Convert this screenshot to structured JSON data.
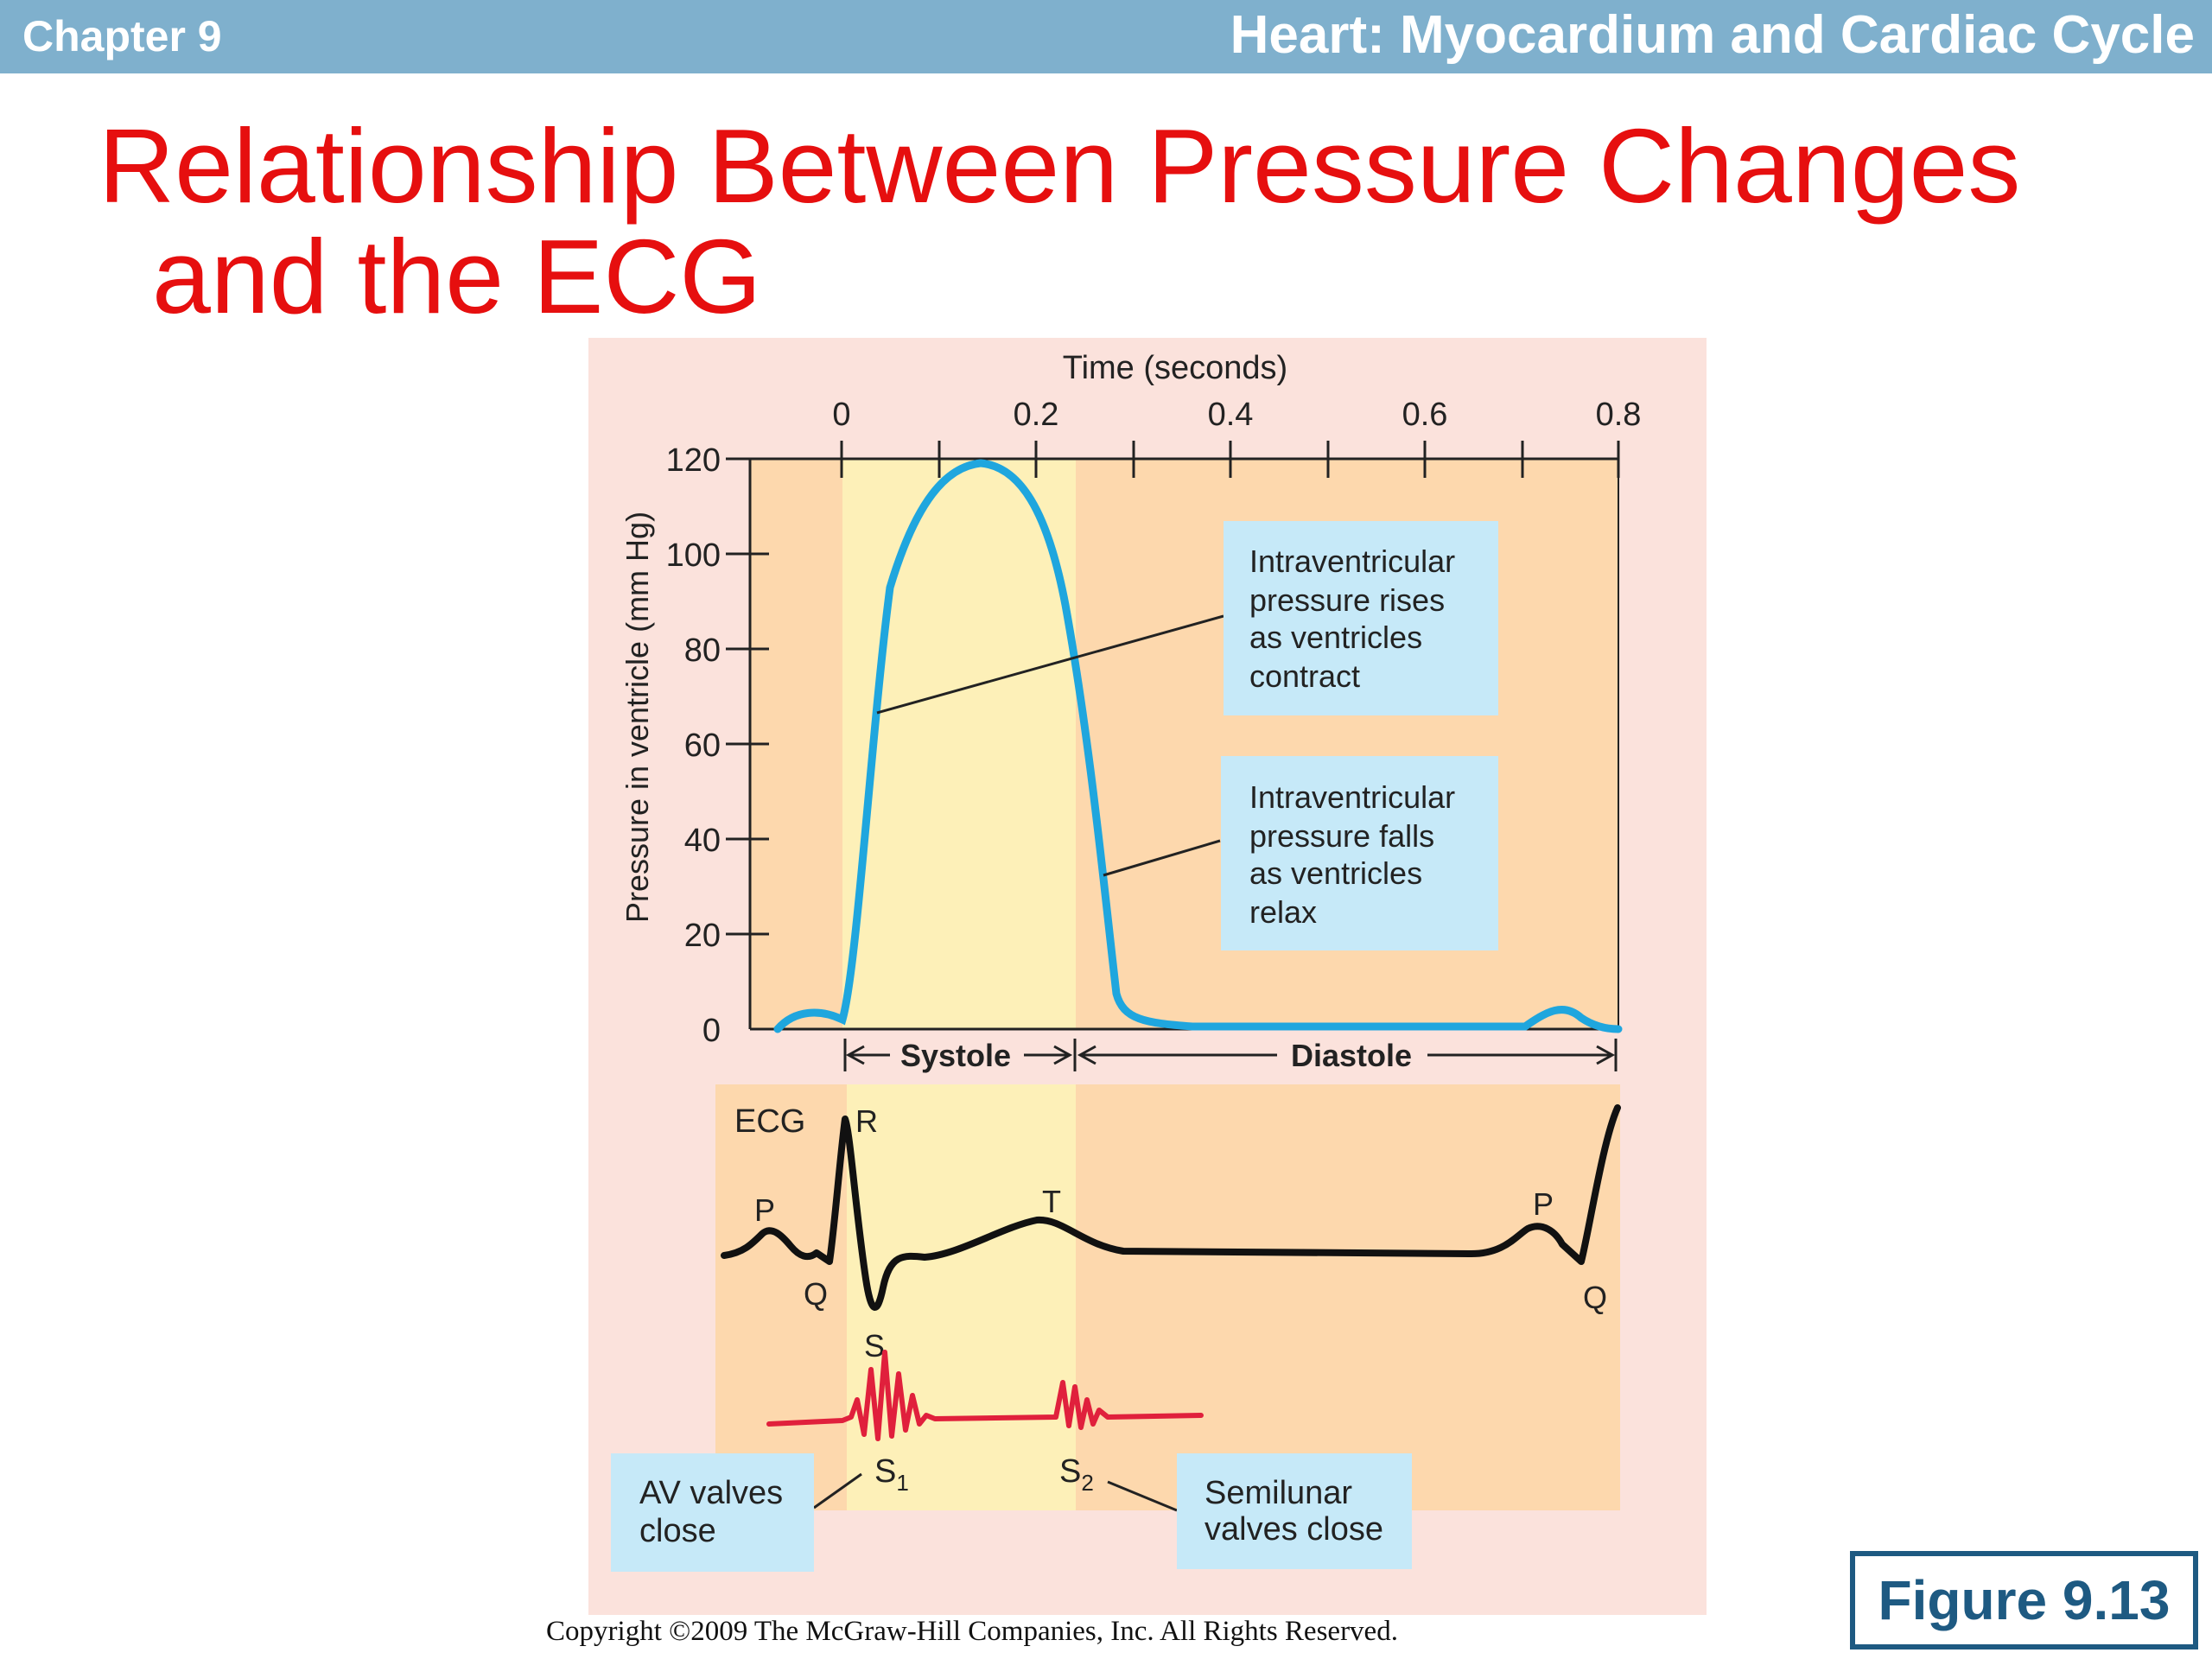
{
  "header": {
    "chapter": "Chapter 9",
    "title": "Heart: Myocardium and Cardiac Cycle"
  },
  "slide_title": {
    "line1": "Relationship Between Pressure Changes",
    "line2": "and the ECG"
  },
  "figure": {
    "time_axis_label": "Time (seconds)",
    "time_ticks": [
      "0",
      "0.2",
      "0.4",
      "0.6",
      "0.8"
    ],
    "pressure_axis_label": "Pressure in ventricle (mm Hg)",
    "pressure_ticks": [
      "0",
      "20",
      "40",
      "60",
      "80",
      "100",
      "120"
    ],
    "systole_label": "Systole",
    "diastole_label": "Diastole",
    "ecg_label": "ECG",
    "ecg_waves": {
      "p_left": "P",
      "q_left": "Q",
      "r": "R",
      "s": "S",
      "t": "T",
      "p_right": "P",
      "q_right": "Q"
    },
    "callout_rise": [
      "Intraventricular",
      "pressure rises",
      "as ventricles",
      "contract"
    ],
    "callout_fall": [
      "Intraventricular",
      "pressure falls",
      "as ventricles",
      "relax"
    ],
    "heart_sound_1": "S",
    "heart_sound_1_sub": "1",
    "heart_sound_2": "S",
    "heart_sound_2_sub": "2",
    "callout_av": [
      "AV valves",
      "close"
    ],
    "callout_semilunar": [
      "Semilunar",
      "valves close"
    ],
    "colors": {
      "panel_bg": "#fbe2dc",
      "diastole_fill": "#fdd8ad",
      "systole_fill": "#fdf0b8",
      "pressure_curve": "#1fa6de",
      "ecg_trace": "#111111",
      "sound_trace": "#e0203c",
      "callout_bg": "#c6e9f8"
    }
  },
  "copyright": "Copyright ©2009 The McGraw-Hill Companies, Inc. All Rights Reserved.",
  "figure_number": "Figure 9.13"
}
